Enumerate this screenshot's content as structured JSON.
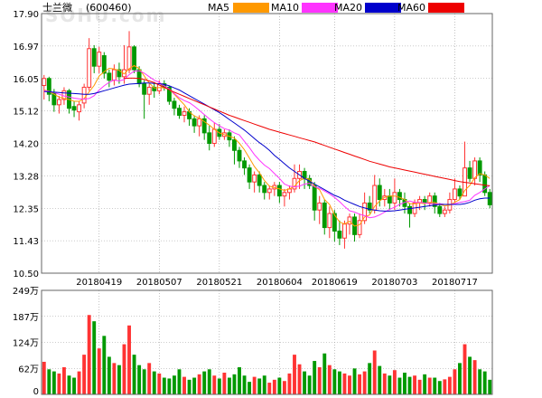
{
  "stock": {
    "name": "士兰微",
    "code": "(600460)"
  },
  "watermark": "SOHU.com",
  "legend": [
    {
      "name": "MA5",
      "color": "#ff9900"
    },
    {
      "name": "MA10",
      "color": "#ff33ff"
    },
    {
      "name": "MA20",
      "color": "#0000cc"
    },
    {
      "name": "MA60",
      "color": "#ee0000"
    }
  ],
  "colors": {
    "up": "#ff3333",
    "down": "#009900",
    "grid": "#999999"
  },
  "chart_data": {
    "type": "candlestick",
    "price_axis": {
      "ylim": [
        10.5,
        17.9
      ],
      "ticks": [
        "17.90",
        "16.97",
        "16.05",
        "15.12",
        "14.20",
        "13.28",
        "12.35",
        "11.43",
        "10.50"
      ]
    },
    "volume_axis": {
      "ylim": [
        0,
        249
      ],
      "unit": "万",
      "ticks": [
        "249万",
        "187万",
        "124万",
        "62万",
        "0"
      ]
    },
    "date_labels": [
      {
        "label": "20180419",
        "index": 11
      },
      {
        "label": "20180507",
        "index": 23
      },
      {
        "label": "20180521",
        "index": 35
      },
      {
        "label": "20180604",
        "index": 47
      },
      {
        "label": "20180619",
        "index": 58
      },
      {
        "label": "20180703",
        "index": 70
      },
      {
        "label": "20180717",
        "index": 82
      }
    ],
    "candles": [
      [
        15.85,
        16.05,
        16.15,
        15.45
      ],
      [
        16.05,
        15.6,
        16.1,
        15.4
      ],
      [
        15.65,
        15.3,
        15.75,
        15.1
      ],
      [
        15.3,
        15.45,
        15.55,
        15.05
      ],
      [
        15.45,
        15.7,
        15.8,
        15.3
      ],
      [
        15.7,
        15.2,
        15.75,
        15.05
      ],
      [
        15.25,
        15.15,
        15.4,
        14.95
      ],
      [
        15.1,
        15.3,
        15.4,
        14.85
      ],
      [
        15.35,
        15.8,
        15.9,
        15.2
      ],
      [
        15.8,
        16.9,
        17.2,
        15.7
      ],
      [
        16.9,
        16.4,
        17.0,
        16.2
      ],
      [
        16.4,
        16.8,
        16.95,
        16.2
      ],
      [
        16.7,
        16.2,
        16.8,
        16.05
      ],
      [
        16.2,
        16.0,
        16.3,
        15.8
      ],
      [
        16.0,
        16.3,
        16.45,
        15.85
      ],
      [
        16.3,
        16.1,
        16.5,
        15.9
      ],
      [
        16.1,
        16.3,
        17.0,
        15.9
      ],
      [
        16.3,
        16.95,
        17.4,
        16.2
      ],
      [
        16.95,
        16.3,
        17.0,
        16.2
      ],
      [
        16.3,
        15.9,
        16.4,
        15.8
      ],
      [
        15.9,
        15.6,
        16.0,
        14.9
      ],
      [
        15.6,
        15.8,
        15.9,
        15.3
      ],
      [
        15.8,
        15.7,
        15.95,
        15.5
      ],
      [
        15.7,
        15.9,
        16.0,
        15.6
      ],
      [
        15.9,
        15.8,
        16.0,
        15.7
      ],
      [
        15.8,
        15.4,
        15.85,
        15.3
      ],
      [
        15.4,
        15.2,
        15.5,
        15.0
      ],
      [
        15.2,
        15.0,
        15.3,
        14.9
      ],
      [
        15.0,
        15.1,
        15.25,
        14.8
      ],
      [
        15.1,
        14.9,
        15.2,
        14.7
      ],
      [
        14.9,
        14.7,
        15.0,
        14.5
      ],
      [
        14.7,
        14.9,
        15.0,
        14.4
      ],
      [
        14.9,
        14.5,
        15.0,
        14.3
      ],
      [
        14.5,
        14.2,
        14.7,
        14.0
      ],
      [
        14.2,
        14.6,
        14.8,
        14.1
      ],
      [
        14.6,
        14.4,
        14.75,
        14.3
      ],
      [
        14.4,
        14.5,
        14.6,
        14.3
      ],
      [
        14.5,
        14.3,
        14.6,
        14.1
      ],
      [
        14.3,
        14.0,
        14.4,
        13.6
      ],
      [
        14.0,
        13.7,
        14.1,
        13.5
      ],
      [
        13.7,
        13.5,
        13.8,
        13.3
      ],
      [
        13.5,
        13.1,
        13.6,
        12.9
      ],
      [
        13.1,
        13.3,
        13.4,
        12.8
      ],
      [
        13.3,
        13.0,
        13.4,
        12.8
      ],
      [
        13.0,
        12.8,
        13.1,
        12.6
      ],
      [
        12.8,
        12.9,
        13.0,
        12.6
      ],
      [
        12.9,
        13.0,
        13.1,
        12.7
      ],
      [
        13.0,
        12.7,
        13.1,
        12.5
      ],
      [
        12.7,
        12.8,
        12.9,
        12.4
      ],
      [
        12.8,
        12.9,
        13.0,
        12.6
      ],
      [
        12.9,
        13.2,
        13.6,
        12.8
      ],
      [
        13.2,
        13.4,
        13.6,
        12.9
      ],
      [
        13.4,
        13.2,
        13.5,
        12.9
      ],
      [
        13.2,
        13.0,
        13.3,
        12.9
      ],
      [
        13.0,
        12.3,
        13.1,
        12.0
      ],
      [
        12.3,
        12.5,
        12.7,
        11.9
      ],
      [
        12.5,
        11.8,
        12.6,
        11.6
      ],
      [
        11.8,
        12.2,
        12.4,
        11.5
      ],
      [
        12.2,
        11.7,
        12.3,
        11.4
      ],
      [
        11.7,
        11.5,
        12.0,
        11.3
      ],
      [
        11.5,
        11.9,
        12.0,
        11.2
      ],
      [
        11.9,
        12.1,
        12.2,
        11.6
      ],
      [
        12.1,
        11.6,
        12.2,
        11.4
      ],
      [
        11.6,
        12.0,
        12.2,
        11.5
      ],
      [
        12.0,
        12.5,
        12.8,
        11.9
      ],
      [
        12.5,
        12.3,
        12.7,
        12.2
      ],
      [
        12.3,
        13.0,
        13.3,
        12.2
      ],
      [
        13.0,
        12.6,
        13.2,
        12.4
      ],
      [
        12.6,
        12.7,
        12.9,
        12.4
      ],
      [
        12.7,
        12.5,
        12.9,
        12.3
      ],
      [
        12.5,
        12.8,
        13.2,
        12.3
      ],
      [
        12.8,
        12.6,
        12.9,
        12.4
      ],
      [
        12.6,
        12.4,
        12.8,
        12.2
      ],
      [
        12.4,
        12.2,
        12.5,
        11.8
      ],
      [
        12.2,
        12.5,
        12.6,
        12.1
      ],
      [
        12.5,
        12.6,
        12.7,
        12.3
      ],
      [
        12.6,
        12.5,
        12.7,
        12.3
      ],
      [
        12.5,
        12.7,
        12.8,
        12.4
      ],
      [
        12.7,
        12.4,
        12.8,
        12.2
      ],
      [
        12.4,
        12.2,
        12.5,
        12.1
      ],
      [
        12.2,
        12.3,
        12.4,
        12.1
      ],
      [
        12.3,
        12.6,
        12.8,
        12.2
      ],
      [
        12.6,
        12.9,
        13.2,
        12.5
      ],
      [
        12.9,
        12.7,
        13.0,
        12.6
      ],
      [
        12.7,
        13.5,
        14.25,
        12.7
      ],
      [
        13.5,
        13.2,
        13.7,
        13.1
      ],
      [
        13.2,
        13.7,
        13.8,
        13.0
      ],
      [
        13.7,
        13.3,
        13.8,
        13.1
      ],
      [
        13.3,
        12.8,
        13.4,
        12.7
      ],
      [
        12.8,
        12.45,
        12.9,
        12.35
      ]
    ],
    "ma5": [
      15.72,
      15.68,
      15.6,
      15.52,
      15.48,
      15.45,
      15.4,
      15.4,
      15.48,
      15.67,
      15.85,
      16.12,
      16.24,
      16.34,
      16.32,
      16.28,
      16.18,
      16.33,
      16.42,
      16.33,
      16.12,
      15.92,
      15.78,
      15.79,
      15.78,
      15.74,
      15.6,
      15.45,
      15.3,
      15.1,
      14.98,
      14.92,
      14.82,
      14.72,
      14.6,
      14.5,
      14.45,
      14.4,
      14.35,
      14.2,
      14.02,
      13.78,
      13.54,
      13.36,
      13.14,
      12.98,
      12.94,
      12.9,
      12.86,
      12.9,
      12.98,
      13.14,
      13.2,
      13.18,
      12.98,
      12.88,
      12.6,
      12.46,
      12.16,
      11.96,
      11.9,
      11.98,
      11.84,
      11.88,
      12.1,
      12.16,
      12.4,
      12.56,
      12.66,
      12.7,
      12.7,
      12.66,
      12.6,
      12.48,
      12.48,
      12.5,
      12.48,
      12.52,
      12.52,
      12.46,
      12.42,
      12.44,
      12.52,
      12.6,
      12.86,
      13.0,
      13.22,
      13.34,
      13.3,
      13.2
    ],
    "ma10": [
      15.7,
      15.68,
      15.65,
      15.6,
      15.55,
      15.52,
      15.49,
      15.47,
      15.46,
      15.48,
      15.56,
      15.72,
      15.84,
      15.94,
      16.01,
      15.98,
      16.02,
      16.16,
      16.26,
      16.27,
      16.2,
      16.1,
      16.0,
      15.94,
      15.84,
      15.75,
      15.62,
      15.5,
      15.42,
      15.36,
      15.26,
      15.14,
      15.02,
      14.9,
      14.79,
      14.7,
      14.62,
      14.58,
      14.5,
      14.44,
      14.26,
      14.08,
      13.88,
      13.72,
      13.58,
      13.48,
      13.34,
      13.2,
      13.04,
      12.98,
      12.96,
      12.98,
      13.04,
      13.06,
      12.96,
      12.92,
      12.84,
      12.76,
      12.66,
      12.54,
      12.4,
      12.28,
      12.24,
      12.18,
      12.14,
      12.08,
      12.1,
      12.16,
      12.24,
      12.32,
      12.38,
      12.46,
      12.52,
      12.56,
      12.52,
      12.52,
      12.5,
      12.48,
      12.48,
      12.48,
      12.46,
      12.46,
      12.48,
      12.52,
      12.54,
      12.58,
      12.72,
      12.8,
      12.9,
      13.0
    ],
    "ma20": [
      15.68,
      15.67,
      15.66,
      15.65,
      15.64,
      15.63,
      15.62,
      15.61,
      15.6,
      15.6,
      15.62,
      15.66,
      15.7,
      15.74,
      15.78,
      15.82,
      15.86,
      15.89,
      15.9,
      15.91,
      15.92,
      15.92,
      15.91,
      15.9,
      15.88,
      15.84,
      15.78,
      15.72,
      15.64,
      15.56,
      15.48,
      15.4,
      15.32,
      15.24,
      15.16,
      15.08,
      14.98,
      14.88,
      14.78,
      14.68,
      14.58,
      14.46,
      14.34,
      14.22,
      14.12,
      14.0,
      13.86,
      13.74,
      13.62,
      13.5,
      13.4,
      13.3,
      13.2,
      13.12,
      13.04,
      12.96,
      12.88,
      12.8,
      12.72,
      12.66,
      12.58,
      12.52,
      12.46,
      12.4,
      12.36,
      12.32,
      12.3,
      12.28,
      12.27,
      12.27,
      12.28,
      12.3,
      12.32,
      12.34,
      12.36,
      12.38,
      12.4,
      12.42,
      12.44,
      12.46,
      12.46,
      12.46,
      12.46,
      12.46,
      12.48,
      12.52,
      12.58,
      12.62,
      12.64,
      12.64
    ],
    "ma60": [
      null,
      null,
      null,
      null,
      null,
      null,
      null,
      null,
      null,
      null,
      null,
      null,
      null,
      null,
      null,
      null,
      16.05,
      16.06,
      16.06,
      16.05,
      16.02,
      15.98,
      15.93,
      15.86,
      15.8,
      15.73,
      15.66,
      15.6,
      15.54,
      15.48,
      15.42,
      15.36,
      15.3,
      15.24,
      15.18,
      15.12,
      15.06,
      15.0,
      14.95,
      14.9,
      14.85,
      14.8,
      14.75,
      14.7,
      14.65,
      14.6,
      14.56,
      14.52,
      14.48,
      14.44,
      14.4,
      14.36,
      14.32,
      14.28,
      14.24,
      14.19,
      14.14,
      14.09,
      14.04,
      13.99,
      13.94,
      13.89,
      13.84,
      13.79,
      13.74,
      13.69,
      13.65,
      13.61,
      13.57,
      13.53,
      13.5,
      13.47,
      13.44,
      13.41,
      13.38,
      13.35,
      13.32,
      13.29,
      13.26,
      13.23,
      13.2,
      13.17,
      13.14,
      13.11,
      13.09,
      13.07,
      13.05,
      13.03,
      13.01,
      12.99
    ],
    "volume": [
      78,
      60,
      55,
      50,
      65,
      45,
      40,
      55,
      95,
      190,
      175,
      110,
      140,
      90,
      75,
      70,
      120,
      165,
      95,
      70,
      60,
      75,
      55,
      50,
      40,
      38,
      45,
      60,
      42,
      35,
      40,
      48,
      55,
      60,
      45,
      38,
      52,
      40,
      48,
      65,
      45,
      30,
      42,
      38,
      45,
      28,
      35,
      40,
      32,
      50,
      95,
      72,
      55,
      45,
      80,
      65,
      98,
      70,
      60,
      55,
      50,
      45,
      62,
      48,
      55,
      75,
      105,
      68,
      50,
      45,
      58,
      40,
      52,
      42,
      45,
      35,
      48,
      40,
      40,
      32,
      36,
      42,
      60,
      75,
      120,
      90,
      82,
      60,
      55,
      35
    ],
    "volume_up": [
      true,
      false,
      false,
      true,
      true,
      false,
      false,
      true,
      true,
      true,
      false,
      true,
      false,
      false,
      true,
      false,
      true,
      true,
      false,
      false,
      false,
      true,
      false,
      true,
      false,
      false,
      false,
      false,
      true,
      false,
      false,
      true,
      false,
      false,
      true,
      false,
      true,
      false,
      false,
      false,
      false,
      false,
      true,
      false,
      false,
      true,
      true,
      false,
      true,
      true,
      true,
      true,
      false,
      false,
      false,
      true,
      false,
      true,
      false,
      false,
      true,
      true,
      false,
      true,
      true,
      false,
      true,
      false,
      true,
      false,
      true,
      false,
      false,
      false,
      true,
      true,
      false,
      true,
      false,
      false,
      true,
      true,
      true,
      false,
      true,
      false,
      true,
      false,
      false,
      false
    ]
  }
}
